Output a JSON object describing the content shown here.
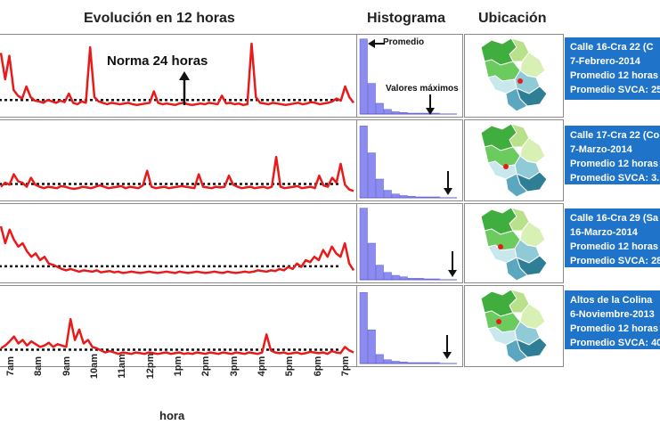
{
  "headers": {
    "evolution": "Evolución en 12 horas",
    "histogram": "Histograma",
    "location": "Ubicación"
  },
  "annotations": {
    "norm": "Norma 24 horas",
    "mean": "Promedio",
    "max_values": "Valores máximos"
  },
  "chart_data": {
    "type": "line",
    "title": "Evolución en 12 horas",
    "xlabel": "hora",
    "ylabel": "",
    "categories": [
      "7am",
      "8am",
      "9am",
      "10am",
      "11am",
      "12pm",
      "1pm",
      "2pm",
      "3pm",
      "4pm",
      "5pm",
      "6pm",
      "7pm"
    ],
    "colors": {
      "series": "#e81a1a",
      "norm": "#111111",
      "histogram": "#8c8cf0",
      "info": "#1f73c8"
    },
    "panels": [
      {
        "values": [
          0.82,
          0.45,
          0.78,
          0.3,
          0.22,
          0.18,
          0.35,
          0.2,
          0.15,
          0.14,
          0.12,
          0.16,
          0.14,
          0.12,
          0.15,
          0.13,
          0.25,
          0.12,
          0.1,
          0.14,
          0.12,
          0.9,
          0.2,
          0.14,
          0.12,
          0.1,
          0.12,
          0.11,
          0.1,
          0.11,
          0.12,
          0.1,
          0.09,
          0.1,
          0.11,
          0.12,
          0.28,
          0.12,
          0.1,
          0.11,
          0.1,
          0.09,
          0.11,
          0.12,
          0.1,
          0.09,
          0.1,
          0.11,
          0.1,
          0.12,
          0.11,
          0.1,
          0.22,
          0.11,
          0.12,
          0.1,
          0.11,
          0.09,
          0.1,
          0.95,
          0.2,
          0.12,
          0.11,
          0.1,
          0.12,
          0.11,
          0.1,
          0.09,
          0.1,
          0.11,
          0.12,
          0.1,
          0.11,
          0.13,
          0.12,
          0.1,
          0.11,
          0.12,
          0.14,
          0.18,
          0.15,
          0.35,
          0.2,
          0.12
        ],
        "histogram": [
          0.98,
          0.4,
          0.14,
          0.06,
          0.03,
          0.02,
          0.01,
          0.01,
          0.01,
          0.0
        ]
      },
      {
        "values": [
          0.12,
          0.18,
          0.15,
          0.3,
          0.2,
          0.18,
          0.12,
          0.25,
          0.15,
          0.12,
          0.1,
          0.12,
          0.11,
          0.1,
          0.13,
          0.12,
          0.1,
          0.09,
          0.1,
          0.12,
          0.11,
          0.1,
          0.12,
          0.14,
          0.12,
          0.1,
          0.11,
          0.12,
          0.13,
          0.1,
          0.12,
          0.11,
          0.1,
          0.14,
          0.35,
          0.12,
          0.1,
          0.11,
          0.12,
          0.1,
          0.11,
          0.12,
          0.13,
          0.12,
          0.11,
          0.1,
          0.3,
          0.12,
          0.11,
          0.1,
          0.12,
          0.11,
          0.12,
          0.28,
          0.15,
          0.12,
          0.1,
          0.11,
          0.12,
          0.1,
          0.11,
          0.12,
          0.1,
          0.12,
          0.55,
          0.12,
          0.1,
          0.11,
          0.12,
          0.13,
          0.1,
          0.11,
          0.12,
          0.1,
          0.28,
          0.14,
          0.12,
          0.25,
          0.18,
          0.45,
          0.15,
          0.08,
          0.06
        ],
        "histogram": [
          0.96,
          0.6,
          0.25,
          0.1,
          0.05,
          0.03,
          0.02,
          0.01,
          0.01,
          0.0
        ]
      },
      {
        "values": [
          0.75,
          0.5,
          0.7,
          0.55,
          0.45,
          0.5,
          0.38,
          0.3,
          0.35,
          0.25,
          0.3,
          0.2,
          0.18,
          0.15,
          0.12,
          0.1,
          0.12,
          0.1,
          0.08,
          0.1,
          0.09,
          0.08,
          0.1,
          0.07,
          0.08,
          0.09,
          0.07,
          0.08,
          0.06,
          0.07,
          0.08,
          0.07,
          0.06,
          0.07,
          0.08,
          0.07,
          0.06,
          0.07,
          0.08,
          0.07,
          0.06,
          0.08,
          0.07,
          0.06,
          0.07,
          0.08,
          0.07,
          0.06,
          0.07,
          0.08,
          0.07,
          0.06,
          0.08,
          0.07,
          0.06,
          0.07,
          0.08,
          0.07,
          0.08,
          0.1,
          0.09,
          0.08,
          0.1,
          0.09,
          0.12,
          0.1,
          0.15,
          0.12,
          0.2,
          0.15,
          0.25,
          0.22,
          0.3,
          0.25,
          0.4,
          0.3,
          0.45,
          0.35,
          0.3,
          0.5,
          0.2,
          0.1
        ],
        "histogram": [
          0.98,
          0.5,
          0.2,
          0.1,
          0.06,
          0.04,
          0.02,
          0.02,
          0.01,
          0.0
        ]
      },
      {
        "values": [
          0.18,
          0.22,
          0.28,
          0.35,
          0.25,
          0.3,
          0.22,
          0.28,
          0.24,
          0.2,
          0.22,
          0.26,
          0.2,
          0.24,
          0.22,
          0.2,
          0.6,
          0.3,
          0.45,
          0.25,
          0.3,
          0.2,
          0.18,
          0.15,
          0.12,
          0.14,
          0.12,
          0.1,
          0.12,
          0.11,
          0.1,
          0.12,
          0.11,
          0.1,
          0.12,
          0.11,
          0.1,
          0.11,
          0.12,
          0.1,
          0.11,
          0.12,
          0.1,
          0.11,
          0.1,
          0.12,
          0.11,
          0.1,
          0.12,
          0.11,
          0.1,
          0.12,
          0.11,
          0.1,
          0.12,
          0.11,
          0.1,
          0.12,
          0.11,
          0.1,
          0.12,
          0.38,
          0.15,
          0.12,
          0.11,
          0.12,
          0.1,
          0.11,
          0.12,
          0.1,
          0.11,
          0.13,
          0.12,
          0.11,
          0.12,
          0.1,
          0.14,
          0.12,
          0.11,
          0.2,
          0.15,
          0.12
        ],
        "histogram": [
          0.95,
          0.45,
          0.12,
          0.05,
          0.03,
          0.02,
          0.01,
          0.01,
          0.0,
          0.0
        ]
      }
    ]
  },
  "info_boxes": [
    {
      "line1": "Calle 16-Cra 22  (C",
      "line2": "7-Febrero-2014",
      "line3": "Promedio 12 horas",
      "line4": "Promedio SVCA: 25"
    },
    {
      "line1": "Calle 17-Cra 22 (Co",
      "line2": "7-Marzo-2014",
      "line3": "Promedio 12 horas",
      "line4": "Promedio SVCA: 3."
    },
    {
      "line1": "Calle 16-Cra 29 (Sa",
      "line2": "16-Marzo-2014",
      "line3": "Promedio 12 horas",
      "line4": "Promedio SVCA: 28"
    },
    {
      "line1": "Altos de la Colina",
      "line2": "6-Noviembre-2013",
      "line3": "Promedio 12 horas",
      "line4": "Promedio SVCA: 40"
    }
  ],
  "map_marker_color": "#e81a1a"
}
